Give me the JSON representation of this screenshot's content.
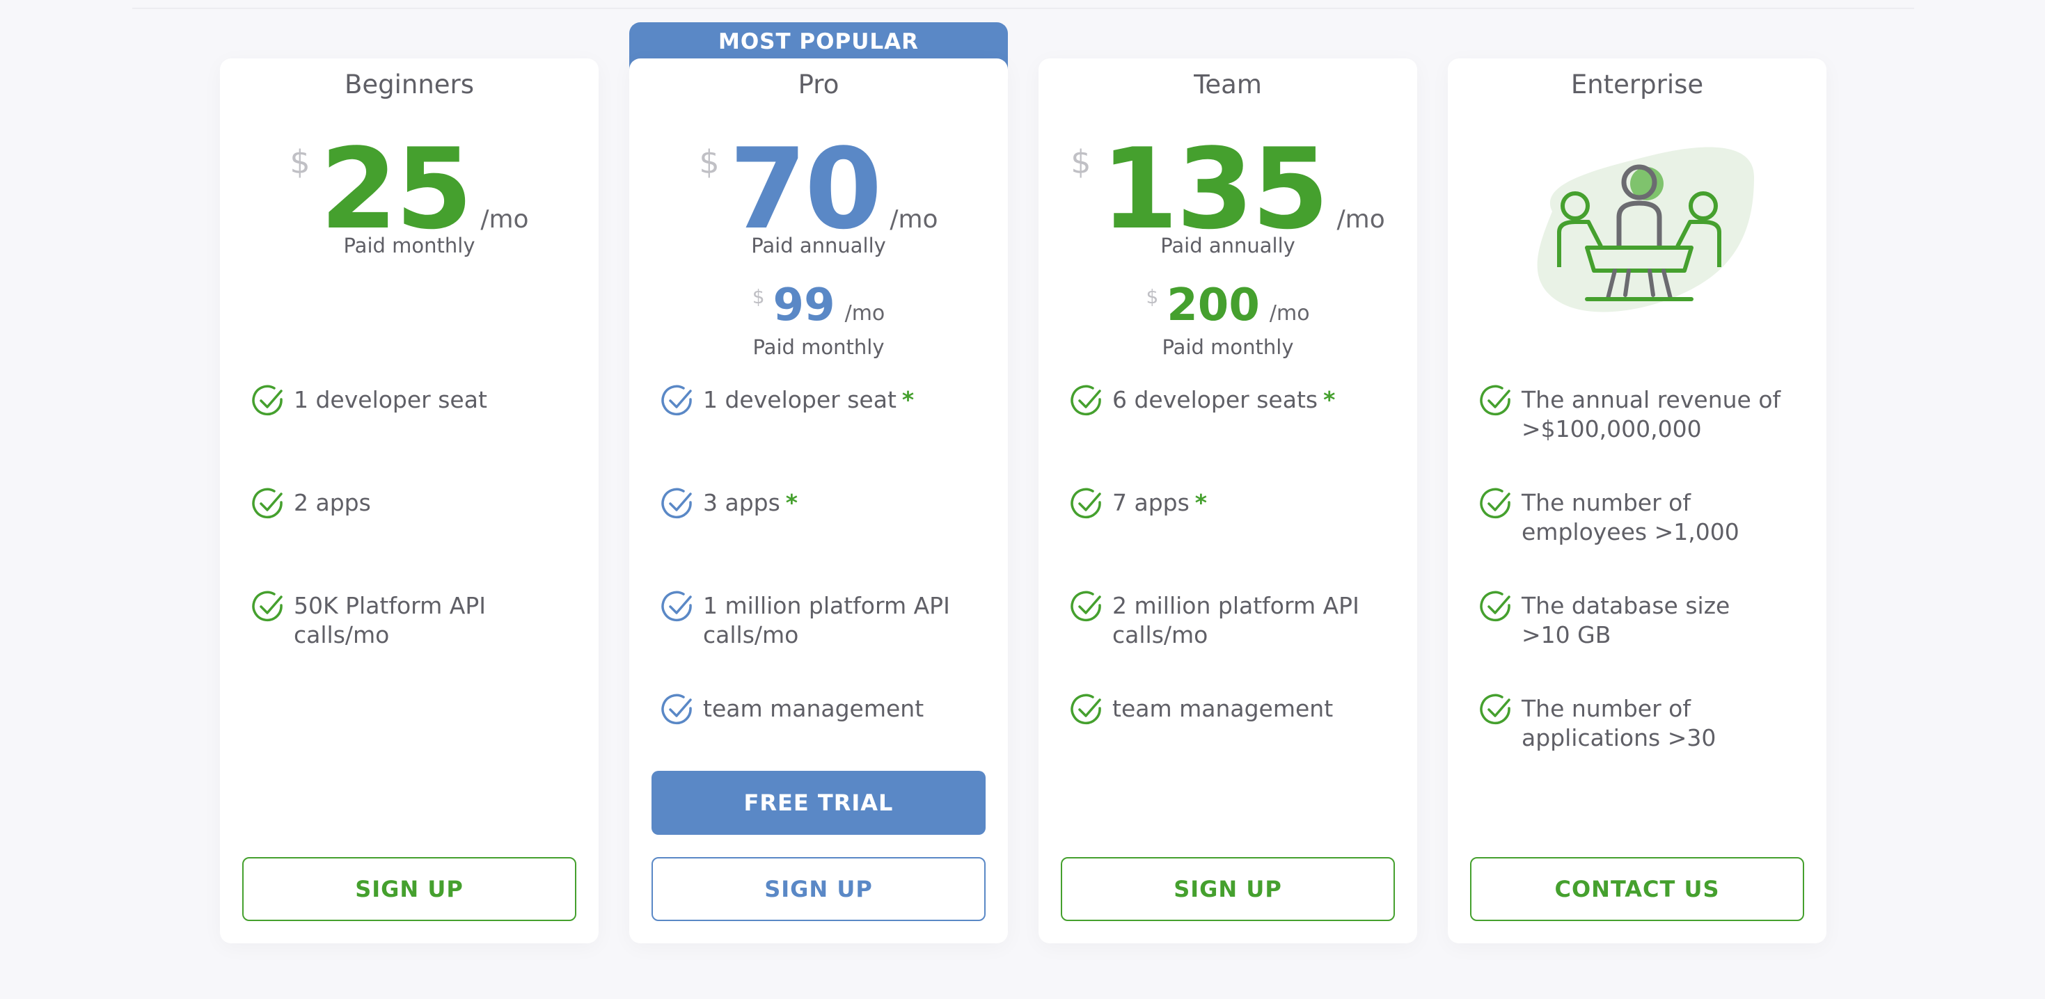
{
  "badge": "MOST POPULAR",
  "plans": [
    {
      "name": "Beginners",
      "currency": "$",
      "price": "25",
      "per": "/mo",
      "period": "Paid monthly",
      "features": [
        {
          "text": "1 developer seat",
          "star": ""
        },
        {
          "text": "2 apps",
          "star": ""
        },
        {
          "text": "50K Platform API calls/mo",
          "star": ""
        }
      ],
      "button": "SIGN UP"
    },
    {
      "name": "Pro",
      "currency": "$",
      "price": "70",
      "per": "/mo",
      "period": "Paid annually",
      "alt_currency": "$",
      "alt_price": "99",
      "alt_per": "/mo",
      "alt_period": "Paid monthly",
      "features": [
        {
          "text": "1 developer seat",
          "star": "*"
        },
        {
          "text": "3 apps",
          "star": "*"
        },
        {
          "text": "1 million platform API calls/mo",
          "star": ""
        },
        {
          "text": "team management",
          "star": ""
        }
      ],
      "trial_button": "FREE TRIAL",
      "button": "SIGN UP"
    },
    {
      "name": "Team",
      "currency": "$",
      "price": "135",
      "per": "/mo",
      "period": "Paid annually",
      "alt_currency": "$",
      "alt_price": "200",
      "alt_per": "/mo",
      "alt_period": "Paid monthly",
      "features": [
        {
          "text": "6 developer seats",
          "star": "*"
        },
        {
          "text": "7 apps",
          "star": "*"
        },
        {
          "text": "2 million platform API calls/mo",
          "star": ""
        },
        {
          "text": "team management",
          "star": ""
        }
      ],
      "button": "SIGN UP"
    },
    {
      "name": "Enterprise",
      "illustration": "meeting-people-icon",
      "features": [
        {
          "text": "The annual revenue of >$100,000,000",
          "star": ""
        },
        {
          "text": "The number of employees >1,000",
          "star": ""
        },
        {
          "text": "The database size >10 GB",
          "star": ""
        },
        {
          "text": "The number of applications >30",
          "star": ""
        }
      ],
      "button": "CONTACT US"
    }
  ],
  "colors": {
    "green": "#45a02e",
    "blue": "#5a88c6"
  }
}
